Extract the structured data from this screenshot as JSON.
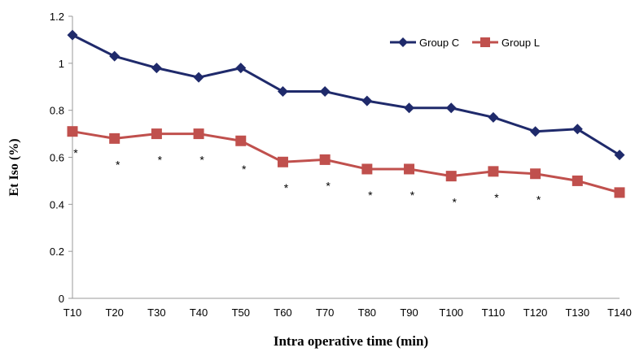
{
  "chart_data": {
    "type": "line",
    "xlabel": "Intra operative time (min)",
    "ylabel": "Et Iso (%)",
    "categories": [
      "T10",
      "T20",
      "T30",
      "T40",
      "T50",
      "T60",
      "T70",
      "T80",
      "T90",
      "T100",
      "T110",
      "T120",
      "T130",
      "T140"
    ],
    "ylim": [
      0,
      1.2
    ],
    "yticks": [
      "0",
      "0.2",
      "0.4",
      "0.6",
      "0.8",
      "1",
      "1.2"
    ],
    "grid": false,
    "legend_position": "top-right",
    "series": [
      {
        "name": "Group C",
        "color": "#1f2a6b",
        "marker": "diamond",
        "values": [
          1.12,
          1.03,
          0.98,
          0.94,
          0.98,
          0.88,
          0.88,
          0.84,
          0.81,
          0.81,
          0.77,
          0.71,
          0.72,
          0.61
        ]
      },
      {
        "name": "Group L",
        "color": "#c0504d",
        "marker": "square",
        "values": [
          0.71,
          0.68,
          0.7,
          0.7,
          0.67,
          0.58,
          0.59,
          0.55,
          0.55,
          0.52,
          0.54,
          0.53,
          0.5,
          0.45
        ]
      }
    ],
    "annotations": [
      {
        "text": "*",
        "category": "T10",
        "y": 0.63
      },
      {
        "text": "*",
        "category": "T20",
        "y": 0.58
      },
      {
        "text": "*",
        "category": "T30",
        "y": 0.6
      },
      {
        "text": "*",
        "category": "T40",
        "y": 0.6
      },
      {
        "text": "*",
        "category": "T50",
        "y": 0.56
      },
      {
        "text": "*",
        "category": "T60",
        "y": 0.48
      },
      {
        "text": "*",
        "category": "T70",
        "y": 0.49
      },
      {
        "text": "*",
        "category": "T80",
        "y": 0.45
      },
      {
        "text": "*",
        "category": "T90",
        "y": 0.45
      },
      {
        "text": "*",
        "category": "T100",
        "y": 0.42
      },
      {
        "text": "*",
        "category": "T110",
        "y": 0.44
      },
      {
        "text": "*",
        "category": "T120",
        "y": 0.43
      }
    ]
  }
}
